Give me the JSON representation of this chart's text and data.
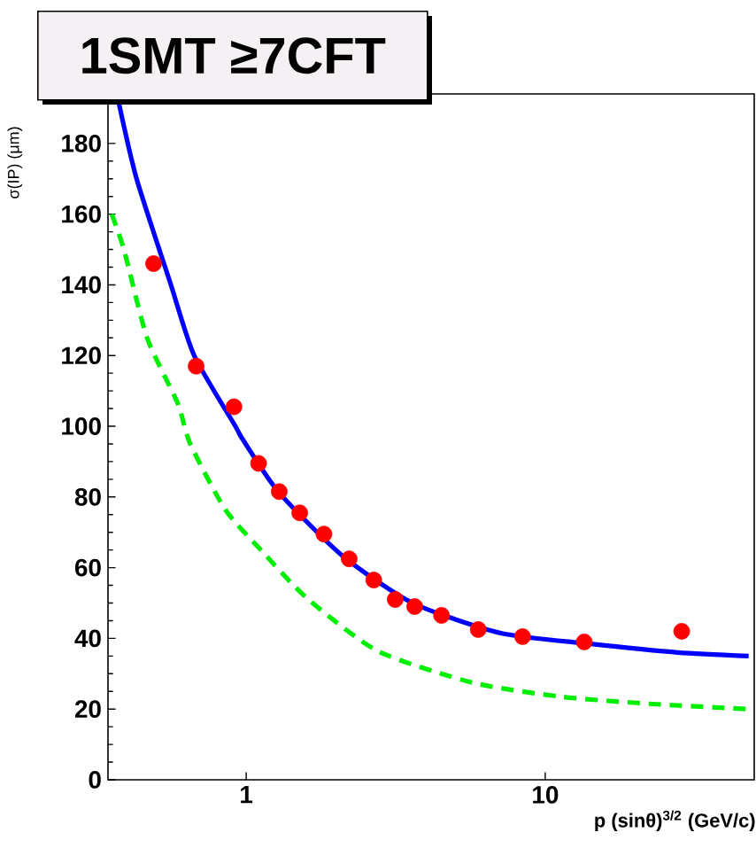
{
  "chart_data": {
    "type": "line",
    "title": "1SMT ≥7CFT",
    "xlabel": "p (sinθ)$^{3/2}$ (GeV/c)",
    "ylabel": "σ(IP) (μm)",
    "log": "x",
    "xlim": [
      0.345,
      50
    ],
    "ylim": [
      0,
      194
    ],
    "xticks": [
      1,
      10
    ],
    "yticks": [
      0,
      20,
      40,
      60,
      80,
      100,
      120,
      140,
      160,
      180
    ],
    "grid": false,
    "series": [
      {
        "color": "#0000ff",
        "line_style": "solid",
        "marker": "none",
        "x": [
          0.375,
          0.43,
          0.56,
          0.67,
          0.92,
          0.97,
          1.28,
          2.09,
          3.6,
          7.1,
          14.0,
          27.8,
          47.9
        ],
        "values": [
          191.5,
          170,
          140,
          120,
          100,
          96.5,
          81.5,
          63.5,
          50,
          41.5,
          38.5,
          36,
          35
        ]
      },
      {
        "color": "#00ee00",
        "line_style": "dashed",
        "marker": "none",
        "x": [
          0.355,
          0.39,
          0.466,
          0.59,
          0.65,
          0.85,
          1.12,
          1.59,
          2.74,
          5.7,
          11.3,
          22.3,
          47
        ],
        "values": [
          160,
          150,
          125,
          106.5,
          95,
          76.5,
          65,
          51.5,
          36.5,
          27.5,
          23.5,
          21.5,
          20
        ]
      },
      {
        "type": "scatter",
        "color": "#ff0000",
        "marker": "circle",
        "x": [
          0.49,
          0.68,
          0.91,
          1.1,
          1.29,
          1.51,
          1.82,
          2.21,
          2.67,
          3.15,
          3.66,
          4.5,
          5.97,
          8.4,
          13.5,
          28.6
        ],
        "values": [
          146,
          117,
          105.5,
          89.5,
          81.5,
          75.5,
          69.5,
          62.5,
          56.5,
          51,
          49,
          46.5,
          42.5,
          40.5,
          39,
          42
        ]
      }
    ]
  }
}
